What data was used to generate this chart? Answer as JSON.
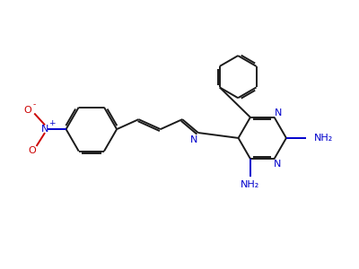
{
  "bg_color": "#ffffff",
  "bond_color": "#1a1a1a",
  "nitrogen_color": "#0000cc",
  "oxygen_color": "#cc0000",
  "lw": 1.4,
  "dbo": 0.055,
  "figsize": [
    4.0,
    3.0
  ],
  "dpi": 100,
  "xlim": [
    0,
    10
  ],
  "ylim": [
    0,
    7.5
  ]
}
